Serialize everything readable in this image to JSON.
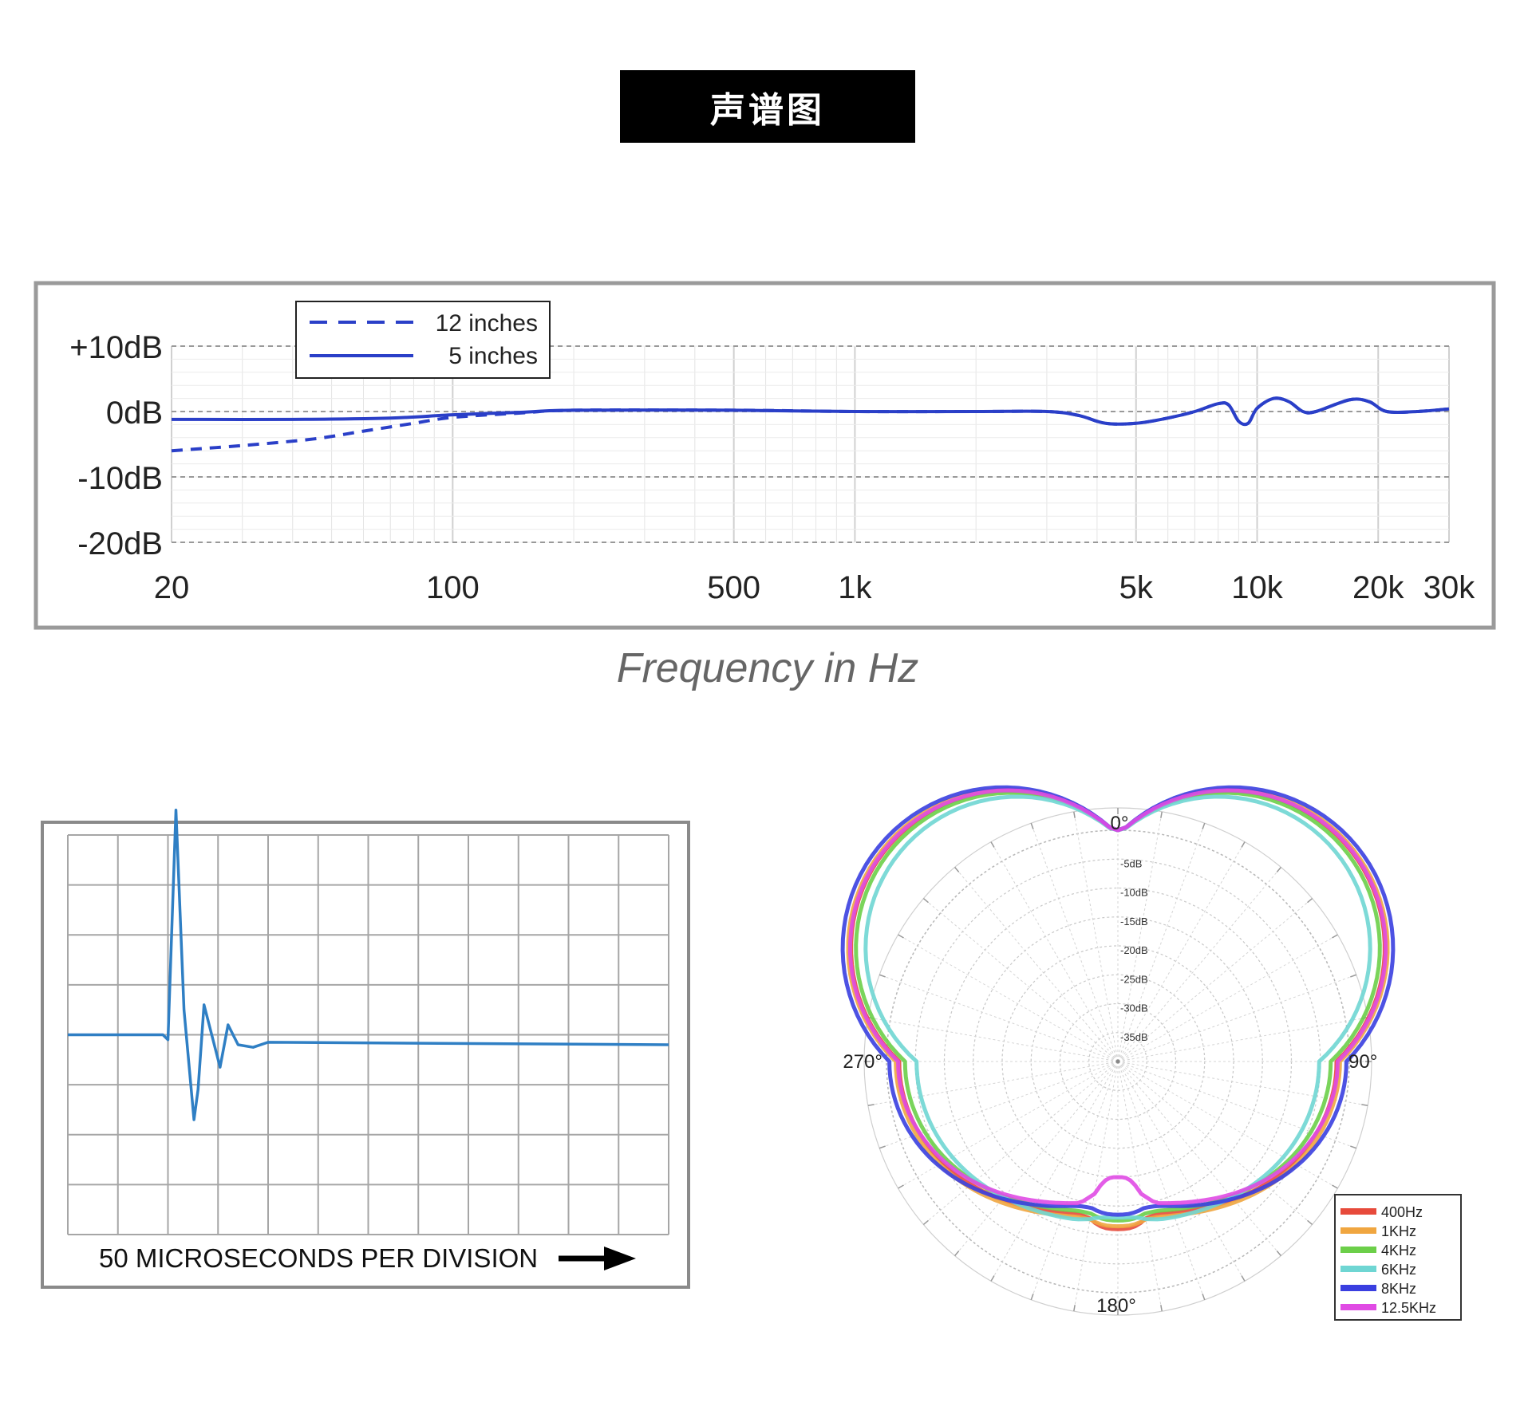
{
  "title": "声谱图",
  "colors": {
    "accent_blue": "#2a3fc8",
    "impulse_blue": "#2f7fc4",
    "frame_gray": "#9a9a9a"
  },
  "chart_data": [
    {
      "type": "line",
      "chart": "frequency-response",
      "xlabel": "Frequency in Hz",
      "ylabel": "",
      "xscale": "log",
      "xlim": [
        20,
        30000
      ],
      "ylim": [
        -20,
        10
      ],
      "x_ticks": [
        {
          "value": 20,
          "label": "20"
        },
        {
          "value": 100,
          "label": "100"
        },
        {
          "value": 500,
          "label": "500"
        },
        {
          "value": 1000,
          "label": "1k"
        },
        {
          "value": 5000,
          "label": "5k"
        },
        {
          "value": 10000,
          "label": "10k"
        },
        {
          "value": 20000,
          "label": "20k"
        },
        {
          "value": 30000,
          "label": "30k"
        }
      ],
      "y_ticks": [
        {
          "value": 10,
          "label": "+10dB"
        },
        {
          "value": 0,
          "label": "0dB"
        },
        {
          "value": -10,
          "label": "-10dB"
        },
        {
          "value": -20,
          "label": "-20dB"
        }
      ],
      "grid": true,
      "legend_position": "top-left",
      "series": [
        {
          "name": "12 inches",
          "style": "dashed",
          "color": "#2a3fc8",
          "points": [
            [
              20,
              -6
            ],
            [
              30,
              -5.2
            ],
            [
              45,
              -4.2
            ],
            [
              60,
              -3
            ],
            [
              80,
              -1.8
            ],
            [
              100,
              -0.9
            ],
            [
              150,
              -0.2
            ],
            [
              200,
              0.2
            ],
            [
              500,
              0.2
            ],
            [
              1000,
              0
            ],
            [
              2000,
              0
            ],
            [
              3000,
              0
            ],
            [
              3600,
              -0.6
            ],
            [
              4200,
              -1.8
            ],
            [
              5000,
              -1.8
            ],
            [
              6000,
              -1
            ],
            [
              7000,
              0
            ],
            [
              8000,
              1.2
            ],
            [
              8500,
              1
            ],
            [
              9000,
              -1.5
            ],
            [
              9500,
              -1.8
            ],
            [
              10000,
              0.5
            ],
            [
              11000,
              2
            ],
            [
              12000,
              1.5
            ],
            [
              13000,
              0
            ],
            [
              14000,
              0
            ],
            [
              17000,
              1.8
            ],
            [
              19000,
              1.5
            ],
            [
              21000,
              0
            ],
            [
              25000,
              0
            ],
            [
              30000,
              0.4
            ]
          ]
        },
        {
          "name": "5 inches",
          "style": "solid",
          "color": "#2a3fc8",
          "points": [
            [
              20,
              -1.2
            ],
            [
              40,
              -1.2
            ],
            [
              70,
              -1
            ],
            [
              100,
              -0.5
            ],
            [
              150,
              -0.1
            ],
            [
              200,
              0.2
            ],
            [
              500,
              0.2
            ],
            [
              1000,
              0
            ],
            [
              2000,
              0
            ],
            [
              3000,
              0
            ],
            [
              3600,
              -0.6
            ],
            [
              4200,
              -1.8
            ],
            [
              5000,
              -1.8
            ],
            [
              6000,
              -1
            ],
            [
              7000,
              0
            ],
            [
              8000,
              1.2
            ],
            [
              8500,
              1
            ],
            [
              9000,
              -1.5
            ],
            [
              9500,
              -1.8
            ],
            [
              10000,
              0.5
            ],
            [
              11000,
              2
            ],
            [
              12000,
              1.5
            ],
            [
              13000,
              0
            ],
            [
              14000,
              0
            ],
            [
              17000,
              1.8
            ],
            [
              19000,
              1.5
            ],
            [
              21000,
              0
            ],
            [
              25000,
              0
            ],
            [
              30000,
              0.4
            ]
          ]
        }
      ]
    },
    {
      "type": "line",
      "chart": "impulse-response",
      "xlabel": "50 MICROSECONDS PER DIVISION",
      "x_unit": "µs",
      "xlim": [
        0,
        600
      ],
      "ylim": [
        -4,
        4
      ],
      "grid": true,
      "series": [
        {
          "name": "",
          "color": "#2f7fc4",
          "points": [
            [
              0,
              0
            ],
            [
              95,
              0
            ],
            [
              100,
              -0.1
            ],
            [
              108,
              4.5
            ],
            [
              116,
              0.5
            ],
            [
              126,
              -1.7
            ],
            [
              130,
              -1.1
            ],
            [
              136,
              0.6
            ],
            [
              152,
              -0.65
            ],
            [
              160,
              0.2
            ],
            [
              170,
              -0.2
            ],
            [
              185,
              -0.25
            ],
            [
              200,
              -0.15
            ],
            [
              600,
              -0.2
            ]
          ]
        }
      ]
    },
    {
      "type": "polar",
      "chart": "polar-pattern",
      "angle_labels": [
        "0°",
        "90°",
        "180°",
        "270°"
      ],
      "radial_labels": [
        "-5dB",
        "-10dB",
        "-15dB",
        "-20dB",
        "-25dB",
        "-30dB",
        "-35dB"
      ],
      "rlim_db": [
        -40,
        0
      ],
      "legend_position": "bottom-right",
      "series": [
        {
          "name": "400Hz",
          "color": "#e74a3b",
          "rear_db": -13.5,
          "side_db": -2.2,
          "rear_cusp_db": -11
        },
        {
          "name": "1KHz",
          "color": "#f0a640",
          "rear_db": -13,
          "side_db": -1.6,
          "rear_cusp_db": -11.5
        },
        {
          "name": "4KHz",
          "color": "#6ccf49",
          "rear_db": -14,
          "side_db": -3.2,
          "rear_cusp_db": -12.5
        },
        {
          "name": "6KHz",
          "color": "#6fd6d3",
          "rear_db": -12.2,
          "side_db": -5.2,
          "rear_cusp_db": -13
        },
        {
          "name": "8KHz",
          "color": "#3a3fe0",
          "rear_db": -15,
          "side_db": -0.5,
          "rear_cusp_db": -13.5
        },
        {
          "name": "12.5KHz",
          "color": "#e04be4",
          "rear_db": -15.5,
          "side_db": -2,
          "rear_cusp_db": -20
        }
      ]
    }
  ]
}
